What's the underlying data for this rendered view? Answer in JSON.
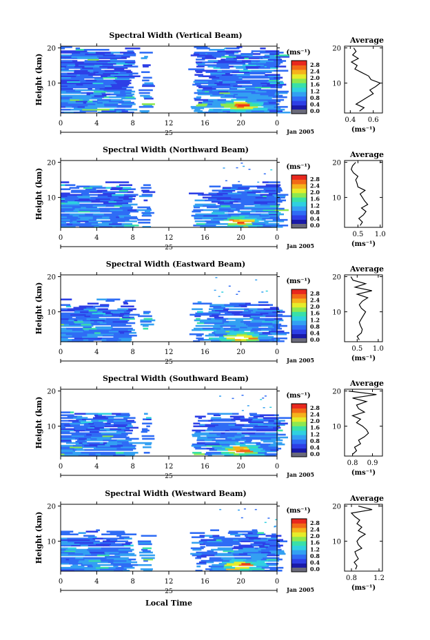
{
  "figure": {
    "bottom_xlabel": "Local Time",
    "date_label": "Jan 2005",
    "day_label": "25"
  },
  "colors": {
    "colormap": [
      "#1a1aa8",
      "#2d3fe6",
      "#2f6cf5",
      "#33a0f2",
      "#2fd0e0",
      "#39e0a8",
      "#8ee84f",
      "#e6ec2a",
      "#f5b21c",
      "#f26a17",
      "#e8281e"
    ],
    "below_range": "#6a6a7a",
    "curve": "#000000"
  },
  "chart_data": [
    {
      "type": "heatmap",
      "title": "Spectral Width (Vertical Beam)",
      "ylabel": "Height (km)",
      "x_ticks": [
        "0",
        "4",
        "8",
        "12",
        "16",
        "20",
        "0"
      ],
      "y_ticks": [
        "20",
        "10"
      ],
      "xlim": [
        0,
        24
      ],
      "ylim": [
        1.5,
        20.5
      ],
      "data_gaps_hours": [
        [
          8.0,
          9.2
        ],
        [
          9.8,
          15.0
        ],
        [
          15.8,
          16.2
        ]
      ],
      "hotspot": {
        "time": 20.0,
        "height_km": 3.5
      },
      "colorbar": {
        "unit": "(ms⁻¹)",
        "ticks": [
          "2.8",
          "2.4",
          "2.0",
          "1.6",
          "1.2",
          "0.8",
          "0.4",
          "0.0"
        ]
      },
      "profile": {
        "title": "Average",
        "xlabel": "(ms⁻¹)",
        "x_ticks": [
          "0.4",
          "0.6"
        ],
        "xlim": [
          0.35,
          0.68
        ],
        "height_km": [
          2,
          3,
          4,
          5,
          6,
          7,
          8,
          9,
          10,
          11,
          12,
          13,
          14,
          15,
          16,
          17,
          18,
          19,
          20
        ],
        "width_ms": [
          0.48,
          0.52,
          0.45,
          0.5,
          0.55,
          0.6,
          0.57,
          0.62,
          0.66,
          0.58,
          0.56,
          0.5,
          0.44,
          0.46,
          0.41,
          0.47,
          0.42,
          0.45,
          0.43
        ]
      }
    },
    {
      "type": "heatmap",
      "title": "Spectral Width (Northward Beam)",
      "ylabel": "Height (km)",
      "x_ticks": [
        "0",
        "4",
        "8",
        "12",
        "16",
        "20",
        "0"
      ],
      "y_ticks": [
        "20",
        "10"
      ],
      "xlim": [
        0,
        24
      ],
      "ylim": [
        1.5,
        20.5
      ],
      "data_gaps_hours": [
        [
          8.0,
          9.2
        ],
        [
          9.8,
          15.0
        ],
        [
          15.8,
          16.2
        ]
      ],
      "hotspot": {
        "time": 20.0,
        "height_km": 3.0
      },
      "colorbar": {
        "unit": "(ms⁻¹)",
        "ticks": [
          "2.8",
          "2.4",
          "2.0",
          "1.6",
          "1.2",
          "0.8",
          "0.4",
          "0.0"
        ]
      },
      "profile": {
        "title": "Average",
        "xlabel": "(ms⁻¹)",
        "x_ticks": [
          "0.5",
          "1.0"
        ],
        "xlim": [
          0.2,
          1.05
        ],
        "height_km": [
          2,
          3,
          4,
          5,
          6,
          7,
          8,
          9,
          10,
          11,
          12,
          13,
          14,
          15,
          16,
          17,
          18,
          19,
          20
        ],
        "width_ms": [
          0.55,
          0.6,
          0.52,
          0.62,
          0.68,
          0.58,
          0.72,
          0.65,
          0.6,
          0.55,
          0.66,
          0.5,
          0.48,
          0.45,
          0.5,
          0.4,
          0.35,
          0.38,
          0.45
        ]
      }
    },
    {
      "type": "heatmap",
      "title": "Spectral Width (Eastward Beam)",
      "ylabel": "Height (km)",
      "x_ticks": [
        "0",
        "4",
        "8",
        "12",
        "16",
        "20",
        "0"
      ],
      "y_ticks": [
        "20",
        "10"
      ],
      "xlim": [
        0,
        24
      ],
      "ylim": [
        1.5,
        20.5
      ],
      "data_gaps_hours": [
        [
          8.0,
          9.2
        ],
        [
          9.8,
          15.0
        ],
        [
          15.8,
          16.2
        ]
      ],
      "hotspot": {
        "time": 20.0,
        "height_km": 2.5
      },
      "colorbar": {
        "unit": "(ms⁻¹)",
        "ticks": [
          "2.8",
          "2.4",
          "2.0",
          "1.6",
          "1.2",
          "0.8",
          "0.4",
          "0.0"
        ]
      },
      "profile": {
        "title": "Average",
        "xlabel": "(ms⁻¹)",
        "x_ticks": [
          "0.5",
          "1.0"
        ],
        "xlim": [
          0.2,
          1.1
        ],
        "height_km": [
          2,
          3,
          4,
          5,
          6,
          7,
          8,
          9,
          10,
          11,
          12,
          13,
          14,
          15,
          16,
          17,
          18,
          19,
          20
        ],
        "width_ms": [
          0.55,
          0.5,
          0.6,
          0.62,
          0.58,
          0.55,
          0.6,
          0.65,
          0.7,
          0.6,
          0.55,
          0.62,
          0.75,
          0.5,
          0.85,
          0.45,
          0.7,
          0.4,
          0.35
        ]
      }
    },
    {
      "type": "heatmap",
      "title": "Spectral Width (Southward Beam)",
      "ylabel": "Height (km)",
      "x_ticks": [
        "0",
        "4",
        "8",
        "12",
        "16",
        "20",
        "0"
      ],
      "y_ticks": [
        "20",
        "10"
      ],
      "xlim": [
        0,
        24
      ],
      "ylim": [
        1.5,
        20.5
      ],
      "data_gaps_hours": [
        [
          8.0,
          9.2
        ],
        [
          9.8,
          15.0
        ],
        [
          15.8,
          16.2
        ]
      ],
      "hotspot": {
        "time": 20.0,
        "height_km": 3.0
      },
      "colorbar": {
        "unit": "(ms⁻¹)",
        "ticks": [
          "2.8",
          "2.4",
          "2.0",
          "1.6",
          "1.2",
          "0.8",
          "0.4",
          "0.0"
        ]
      },
      "profile": {
        "title": "Average",
        "xlabel": "(ms⁻¹)",
        "x_ticks": [
          "0.8",
          "0.9"
        ],
        "xlim": [
          0.76,
          0.95
        ],
        "height_km": [
          2,
          3,
          4,
          5,
          6,
          7,
          8,
          9,
          10,
          11,
          12,
          13,
          14,
          15,
          16,
          17,
          18,
          19,
          20
        ],
        "width_ms": [
          0.8,
          0.82,
          0.81,
          0.84,
          0.83,
          0.86,
          0.88,
          0.87,
          0.85,
          0.82,
          0.84,
          0.8,
          0.86,
          0.83,
          0.82,
          0.87,
          0.8,
          0.92,
          0.78
        ]
      }
    },
    {
      "type": "heatmap",
      "title": "Spectral Width (Westward Beam)",
      "ylabel": "Height (km)",
      "x_ticks": [
        "0",
        "4",
        "8",
        "12",
        "16",
        "20",
        "0"
      ],
      "y_ticks": [
        "20",
        "10"
      ],
      "xlim": [
        0,
        24
      ],
      "ylim": [
        1.5,
        20.5
      ],
      "data_gaps_hours": [
        [
          8.0,
          9.2
        ],
        [
          9.8,
          15.0
        ],
        [
          15.8,
          16.2
        ]
      ],
      "hotspot": {
        "time": 20.0,
        "height_km": 3.0
      },
      "colorbar": {
        "unit": "(ms⁻¹)",
        "ticks": [
          "2.8",
          "2.4",
          "2.0",
          "1.6",
          "1.2",
          "0.8",
          "0.4",
          "0.0"
        ]
      },
      "profile": {
        "title": "Average",
        "xlabel": "(ms⁻¹)",
        "x_ticks": [
          "0.8",
          "1.2"
        ],
        "xlim": [
          0.7,
          1.25
        ],
        "height_km": [
          2,
          3,
          4,
          5,
          6,
          7,
          8,
          9,
          10,
          11,
          12,
          13,
          14,
          15,
          16,
          17,
          18,
          19,
          20
        ],
        "width_ms": [
          0.86,
          0.88,
          0.84,
          0.9,
          0.87,
          0.85,
          0.95,
          0.9,
          0.88,
          0.92,
          1.0,
          0.9,
          0.95,
          0.88,
          0.92,
          0.85,
          0.8,
          1.1,
          0.9
        ]
      }
    }
  ]
}
